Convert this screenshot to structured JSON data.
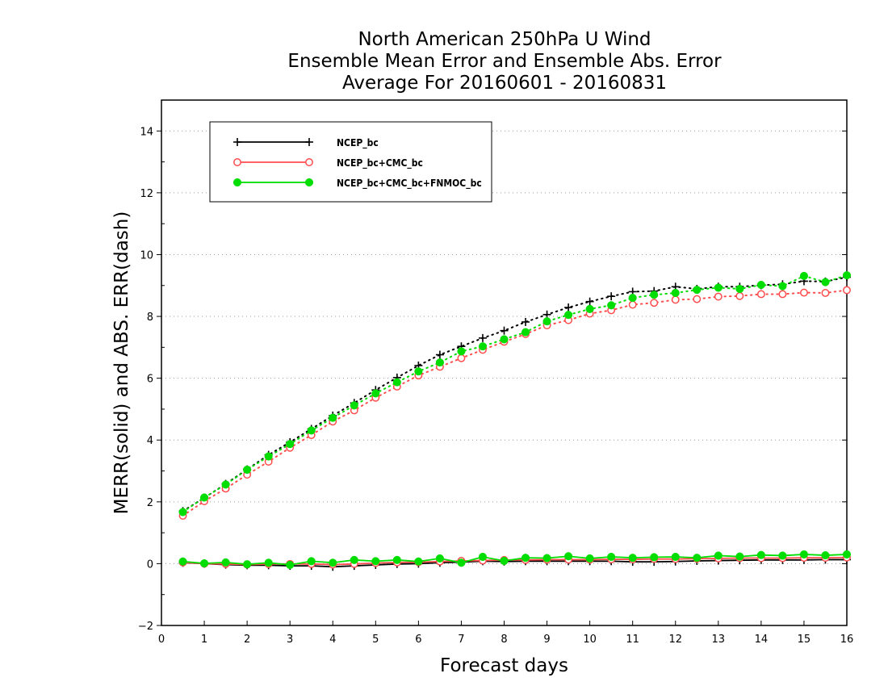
{
  "chart_data": {
    "type": "line",
    "title": [
      "North American 250hPa U Wind",
      "Ensemble Mean Error and Ensemble Abs. Error",
      "Average For 20160601 - 20160831"
    ],
    "xlabel": "Forecast days",
    "ylabel": "MERR(solid) and ABS. ERR(dash)",
    "xlim": [
      0,
      16
    ],
    "ylim": [
      -2,
      15
    ],
    "xticks": [
      0,
      1,
      2,
      3,
      4,
      5,
      6,
      7,
      8,
      9,
      10,
      11,
      12,
      13,
      14,
      15,
      16
    ],
    "yticks": [
      -2,
      0,
      2,
      4,
      6,
      8,
      10,
      12,
      14
    ],
    "grid": "horizontal dotted",
    "legend_position": "top-left",
    "x": [
      0.5,
      1,
      1.5,
      2,
      2.5,
      3,
      3.5,
      4,
      4.5,
      5,
      5.5,
      6,
      6.5,
      7,
      7.5,
      8,
      8.5,
      9,
      9.5,
      10,
      10.5,
      11,
      11.5,
      12,
      12.5,
      13,
      13.5,
      14,
      14.5,
      15,
      15.5,
      16
    ],
    "series": [
      {
        "name": "NCEP_bc",
        "color": "#000000",
        "marker": "plus",
        "merr": [
          0.03,
          0.0,
          -0.03,
          -0.05,
          -0.05,
          -0.07,
          -0.07,
          -0.1,
          -0.07,
          -0.04,
          -0.01,
          0.0,
          0.03,
          0.05,
          0.08,
          0.07,
          0.08,
          0.08,
          0.08,
          0.08,
          0.08,
          0.06,
          0.06,
          0.07,
          0.09,
          0.1,
          0.11,
          0.12,
          0.12,
          0.12,
          0.13,
          0.13
        ],
        "abs_err": [
          1.7,
          2.13,
          2.58,
          3.05,
          3.52,
          3.93,
          4.36,
          4.79,
          5.2,
          5.62,
          6.02,
          6.41,
          6.76,
          7.03,
          7.3,
          7.54,
          7.82,
          8.06,
          8.29,
          8.48,
          8.65,
          8.8,
          8.82,
          8.96,
          8.89,
          8.96,
          8.96,
          9.01,
          9.04,
          9.14,
          9.13,
          9.27
        ]
      },
      {
        "name": "NCEP_bc+CMC_bc",
        "color": "#ff4d4d",
        "marker": "open-circle",
        "merr": [
          0.04,
          0.0,
          -0.01,
          -0.03,
          -0.01,
          -0.01,
          -0.01,
          -0.03,
          -0.01,
          0.02,
          0.04,
          0.05,
          0.07,
          0.09,
          0.1,
          0.12,
          0.12,
          0.13,
          0.13,
          0.13,
          0.14,
          0.14,
          0.15,
          0.15,
          0.16,
          0.17,
          0.18,
          0.18,
          0.18,
          0.19,
          0.19,
          0.2
        ],
        "abs_err": [
          1.55,
          2.02,
          2.43,
          2.88,
          3.3,
          3.75,
          4.16,
          4.6,
          4.96,
          5.37,
          5.73,
          6.09,
          6.37,
          6.65,
          6.92,
          7.18,
          7.43,
          7.71,
          7.88,
          8.09,
          8.2,
          8.38,
          8.44,
          8.54,
          8.56,
          8.64,
          8.66,
          8.72,
          8.72,
          8.77,
          8.76,
          8.85
        ]
      },
      {
        "name": "NCEP_bc+CMC_bc+FNMOC_bc",
        "color": "#00dd00",
        "marker": "filled-circle",
        "merr": [
          0.07,
          0.01,
          0.04,
          -0.02,
          0.03,
          -0.04,
          0.08,
          0.03,
          0.12,
          0.08,
          0.12,
          0.07,
          0.17,
          0.03,
          0.22,
          0.09,
          0.19,
          0.18,
          0.24,
          0.17,
          0.22,
          0.19,
          0.21,
          0.22,
          0.19,
          0.26,
          0.23,
          0.28,
          0.26,
          0.3,
          0.27,
          0.3
        ],
        "abs_err": [
          1.67,
          2.14,
          2.56,
          3.04,
          3.47,
          3.87,
          4.31,
          4.72,
          5.12,
          5.51,
          5.87,
          6.22,
          6.51,
          6.87,
          7.03,
          7.26,
          7.49,
          7.84,
          8.05,
          8.24,
          8.36,
          8.6,
          8.7,
          8.76,
          8.86,
          8.93,
          8.89,
          9.02,
          8.98,
          9.31,
          9.11,
          9.33
        ]
      }
    ]
  }
}
